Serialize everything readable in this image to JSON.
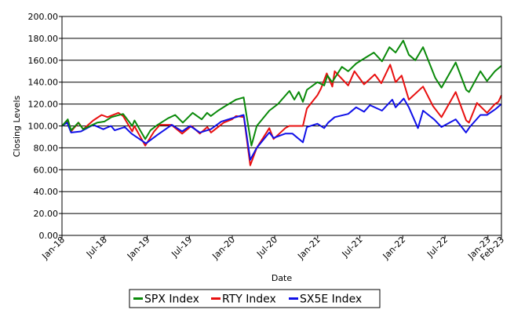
{
  "chart_data": {
    "type": "line",
    "title": "",
    "xlabel": "Date",
    "ylabel": "Closing Levels",
    "ylim": [
      0,
      200
    ],
    "yticks": [
      "0.00",
      "20.00",
      "40.00",
      "60.00",
      "80.00",
      "100.00",
      "120.00",
      "140.00",
      "160.00",
      "180.00",
      "200.00"
    ],
    "xlim": [
      "2018-01-01",
      "2023-02-28"
    ],
    "xticks": [
      {
        "label": "Jan-18",
        "date": "2018-01-01"
      },
      {
        "label": "Jul-18",
        "date": "2018-07-01"
      },
      {
        "label": "Jan-19",
        "date": "2019-01-01"
      },
      {
        "label": "Jul-19",
        "date": "2019-07-01"
      },
      {
        "label": "Jan-20",
        "date": "2020-01-01"
      },
      {
        "label": "Jul-20",
        "date": "2020-07-01"
      },
      {
        "label": "Jan-21",
        "date": "2021-01-01"
      },
      {
        "label": "Jul-21",
        "date": "2021-07-01"
      },
      {
        "label": "Jan-22",
        "date": "2022-01-01"
      },
      {
        "label": "Jul-22",
        "date": "2022-07-01"
      },
      {
        "label": "Jan-23",
        "date": "2023-01-01"
      },
      {
        "label": "Feb-23",
        "date": "2023-02-28"
      }
    ],
    "grid": true,
    "legend": "bottom-center",
    "series": [
      {
        "name": "SPX Index",
        "color": "#0a8a0a",
        "points": [
          [
            "2018-01-01",
            100
          ],
          [
            "2018-01-26",
            106
          ],
          [
            "2018-02-09",
            96
          ],
          [
            "2018-03-12",
            103
          ],
          [
            "2018-04-02",
            97
          ],
          [
            "2018-05-01",
            100
          ],
          [
            "2018-06-01",
            103
          ],
          [
            "2018-07-02",
            104
          ],
          [
            "2018-08-01",
            108
          ],
          [
            "2018-09-20",
            111
          ],
          [
            "2018-10-29",
            100
          ],
          [
            "2018-11-08",
            105
          ],
          [
            "2018-12-24",
            88
          ],
          [
            "2019-01-15",
            96
          ],
          [
            "2019-02-15",
            101
          ],
          [
            "2019-04-01",
            107
          ],
          [
            "2019-05-01",
            110
          ],
          [
            "2019-06-03",
            103
          ],
          [
            "2019-07-15",
            112
          ],
          [
            "2019-08-23",
            106
          ],
          [
            "2019-09-15",
            112
          ],
          [
            "2019-10-01",
            109
          ],
          [
            "2019-11-01",
            114
          ],
          [
            "2019-12-01",
            118
          ],
          [
            "2020-01-17",
            124
          ],
          [
            "2020-02-19",
            126
          ],
          [
            "2020-03-23",
            82
          ],
          [
            "2020-04-15",
            100
          ],
          [
            "2020-06-08",
            114
          ],
          [
            "2020-07-15",
            120
          ],
          [
            "2020-09-02",
            132
          ],
          [
            "2020-09-23",
            124
          ],
          [
            "2020-10-12",
            131
          ],
          [
            "2020-10-30",
            122
          ],
          [
            "2020-11-16",
            133
          ],
          [
            "2020-12-31",
            140
          ],
          [
            "2021-01-29",
            137
          ],
          [
            "2021-02-12",
            146
          ],
          [
            "2021-03-04",
            140
          ],
          [
            "2021-04-15",
            154
          ],
          [
            "2021-05-12",
            150
          ],
          [
            "2021-06-15",
            157
          ],
          [
            "2021-07-15",
            161
          ],
          [
            "2021-08-30",
            167
          ],
          [
            "2021-10-04",
            159
          ],
          [
            "2021-11-05",
            172
          ],
          [
            "2021-12-01",
            167
          ],
          [
            "2022-01-03",
            178
          ],
          [
            "2022-01-27",
            165
          ],
          [
            "2022-02-24",
            160
          ],
          [
            "2022-03-29",
            172
          ],
          [
            "2022-05-20",
            144
          ],
          [
            "2022-06-16",
            135
          ],
          [
            "2022-08-16",
            158
          ],
          [
            "2022-09-30",
            133
          ],
          [
            "2022-10-12",
            131
          ],
          [
            "2022-11-30",
            150
          ],
          [
            "2022-12-28",
            141
          ],
          [
            "2023-01-31",
            150
          ],
          [
            "2023-02-28",
            155
          ]
        ]
      },
      {
        "name": "RTY Index",
        "color": "#e81010",
        "points": [
          [
            "2018-01-01",
            100
          ],
          [
            "2018-01-24",
            104
          ],
          [
            "2018-02-09",
            95
          ],
          [
            "2018-03-13",
            103
          ],
          [
            "2018-04-02",
            97
          ],
          [
            "2018-05-15",
            105
          ],
          [
            "2018-06-20",
            110
          ],
          [
            "2018-07-15",
            108
          ],
          [
            "2018-08-31",
            112
          ],
          [
            "2018-09-20",
            109
          ],
          [
            "2018-10-29",
            95
          ],
          [
            "2018-11-07",
            100
          ],
          [
            "2018-12-24",
            82
          ],
          [
            "2019-01-31",
            95
          ],
          [
            "2019-02-25",
            101
          ],
          [
            "2019-04-15",
            101
          ],
          [
            "2019-05-31",
            93
          ],
          [
            "2019-07-10",
            100
          ],
          [
            "2019-08-15",
            93
          ],
          [
            "2019-09-16",
            99
          ],
          [
            "2019-10-02",
            94
          ],
          [
            "2019-11-25",
            103
          ],
          [
            "2019-12-31",
            106
          ],
          [
            "2020-01-17",
            109
          ],
          [
            "2020-02-20",
            108
          ],
          [
            "2020-03-18",
            64
          ],
          [
            "2020-04-15",
            80
          ],
          [
            "2020-06-08",
            98
          ],
          [
            "2020-06-26",
            88
          ],
          [
            "2020-08-15",
            98
          ],
          [
            "2020-09-01",
            100
          ],
          [
            "2020-10-30",
            100
          ],
          [
            "2020-11-16",
            116
          ],
          [
            "2020-12-31",
            128
          ],
          [
            "2021-01-15",
            134
          ],
          [
            "2021-02-09",
            148
          ],
          [
            "2021-03-05",
            136
          ],
          [
            "2021-03-15",
            150
          ],
          [
            "2021-05-12",
            137
          ],
          [
            "2021-06-08",
            150
          ],
          [
            "2021-07-19",
            138
          ],
          [
            "2021-09-03",
            147
          ],
          [
            "2021-10-01",
            139
          ],
          [
            "2021-11-08",
            156
          ],
          [
            "2021-12-01",
            140
          ],
          [
            "2021-12-27",
            146
          ],
          [
            "2022-01-27",
            124
          ],
          [
            "2022-03-29",
            136
          ],
          [
            "2022-05-11",
            118
          ],
          [
            "2022-06-16",
            108
          ],
          [
            "2022-08-16",
            131
          ],
          [
            "2022-09-30",
            105
          ],
          [
            "2022-10-12",
            103
          ],
          [
            "2022-11-15",
            121
          ],
          [
            "2022-12-28",
            112
          ],
          [
            "2023-01-31",
            120
          ],
          [
            "2023-02-15",
            122
          ],
          [
            "2023-02-28",
            128
          ]
        ]
      },
      {
        "name": "SX5E  Index",
        "color": "#1010e8",
        "points": [
          [
            "2018-01-01",
            100
          ],
          [
            "2018-01-23",
            103
          ],
          [
            "2018-02-09",
            94
          ],
          [
            "2018-03-23",
            95
          ],
          [
            "2018-05-15",
            101
          ],
          [
            "2018-06-27",
            97
          ],
          [
            "2018-07-30",
            100
          ],
          [
            "2018-08-15",
            96
          ],
          [
            "2018-09-27",
            99
          ],
          [
            "2018-10-26",
            93
          ],
          [
            "2018-12-27",
            84
          ],
          [
            "2019-02-15",
            92
          ],
          [
            "2019-04-17",
            101
          ],
          [
            "2019-05-31",
            95
          ],
          [
            "2019-07-04",
            100
          ],
          [
            "2019-08-15",
            94
          ],
          [
            "2019-10-01",
            97
          ],
          [
            "2019-11-15",
            104
          ],
          [
            "2019-12-31",
            107
          ],
          [
            "2020-02-19",
            110
          ],
          [
            "2020-03-18",
            69
          ],
          [
            "2020-04-15",
            80
          ],
          [
            "2020-06-08",
            94
          ],
          [
            "2020-06-26",
            89
          ],
          [
            "2020-08-15",
            93
          ],
          [
            "2020-09-15",
            93
          ],
          [
            "2020-10-30",
            85
          ],
          [
            "2020-11-16",
            99
          ],
          [
            "2020-12-31",
            102
          ],
          [
            "2021-01-29",
            98
          ],
          [
            "2021-02-15",
            103
          ],
          [
            "2021-03-15",
            108
          ],
          [
            "2021-05-12",
            111
          ],
          [
            "2021-06-15",
            117
          ],
          [
            "2021-07-19",
            113
          ],
          [
            "2021-08-13",
            119
          ],
          [
            "2021-10-04",
            114
          ],
          [
            "2021-11-17",
            124
          ],
          [
            "2021-12-01",
            117
          ],
          [
            "2022-01-05",
            125
          ],
          [
            "2022-01-27",
            117
          ],
          [
            "2022-03-07",
            98
          ],
          [
            "2022-03-29",
            114
          ],
          [
            "2022-05-15",
            106
          ],
          [
            "2022-06-16",
            99
          ],
          [
            "2022-08-16",
            106
          ],
          [
            "2022-09-29",
            94
          ],
          [
            "2022-10-15",
            99
          ],
          [
            "2022-11-30",
            110
          ],
          [
            "2022-12-28",
            110
          ],
          [
            "2023-01-31",
            115
          ],
          [
            "2023-02-28",
            120
          ]
        ]
      }
    ]
  }
}
